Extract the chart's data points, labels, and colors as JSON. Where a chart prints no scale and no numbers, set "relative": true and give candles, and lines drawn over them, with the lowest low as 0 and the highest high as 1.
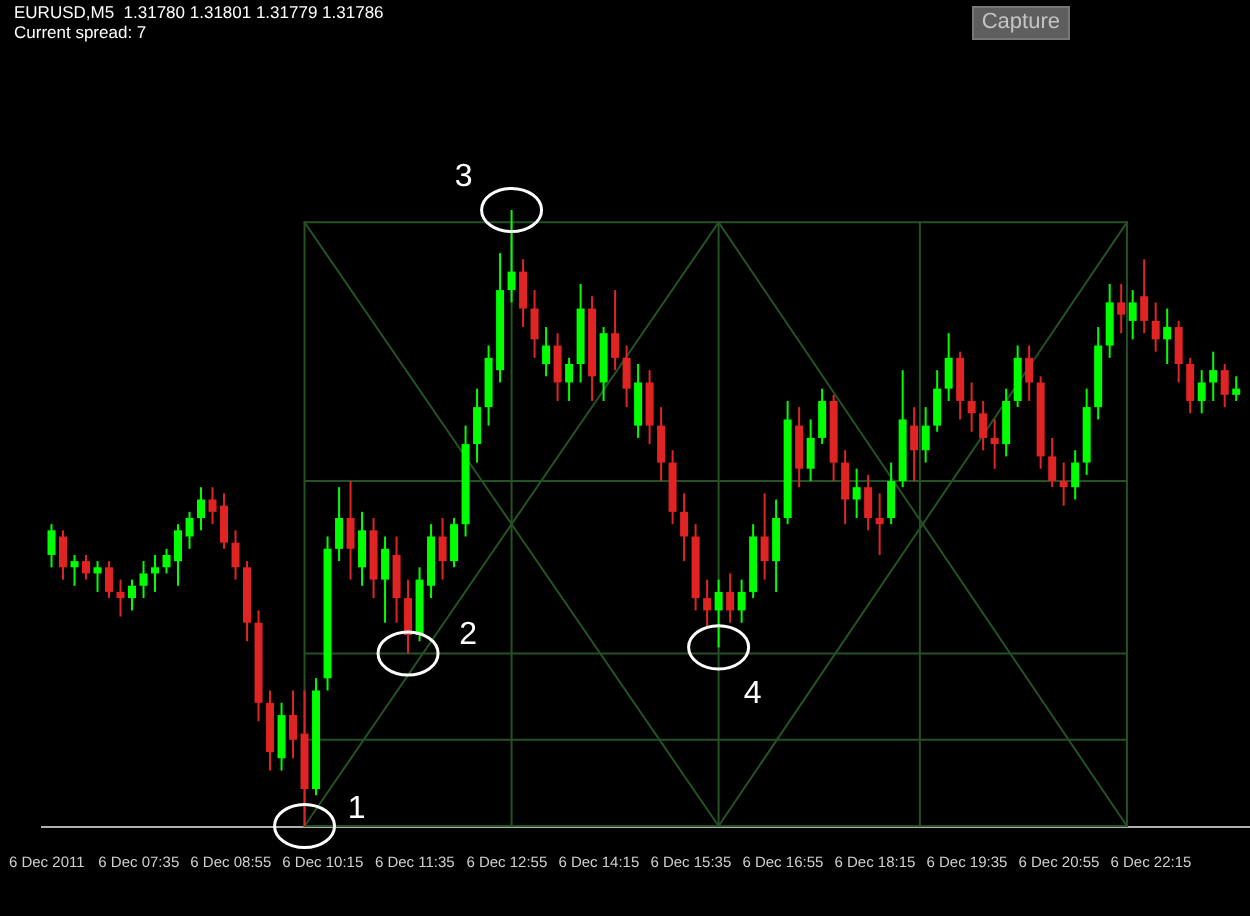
{
  "chart_data": {
    "type": "candlestick",
    "title": "EURUSD,M5  1.31780 1.31801 1.31779 1.31786",
    "subtitle": "Current spread: 7",
    "relative": true,
    "tick_labels": "x",
    "xlim": [
      "2011-12-06T06:10",
      "2011-12-06T23:42"
    ],
    "xticks": [
      {
        "value": "2011-12-06T06:15",
        "label": "6 Dec 2011"
      },
      {
        "value": "2011-12-06T07:35",
        "label": "6 Dec 07:35"
      },
      {
        "value": "2011-12-06T08:55",
        "label": "6 Dec 08:55"
      },
      {
        "value": "2011-12-06T10:15",
        "label": "6 Dec 10:15"
      },
      {
        "value": "2011-12-06T11:35",
        "label": "6 Dec 11:35"
      },
      {
        "value": "2011-12-06T12:55",
        "label": "6 Dec 12:55"
      },
      {
        "value": "2011-12-06T14:15",
        "label": "6 Dec 14:15"
      },
      {
        "value": "2011-12-06T15:35",
        "label": "6 Dec 15:35"
      },
      {
        "value": "2011-12-06T16:55",
        "label": "6 Dec 16:55"
      },
      {
        "value": "2011-12-06T18:15",
        "label": "6 Dec 18:15"
      },
      {
        "value": "2011-12-06T19:35",
        "label": "6 Dec 19:35"
      },
      {
        "value": "2011-12-06T20:55",
        "label": "6 Dec 20:55"
      },
      {
        "value": "2011-12-06T22:15",
        "label": "6 Dec 22:15"
      }
    ],
    "x": [
      "2011-12-06T06:20",
      "2011-12-06T06:30",
      "2011-12-06T06:40",
      "2011-12-06T06:50",
      "2011-12-06T07:00",
      "2011-12-06T07:10",
      "2011-12-06T07:20",
      "2011-12-06T07:30",
      "2011-12-06T07:40",
      "2011-12-06T07:50",
      "2011-12-06T08:00",
      "2011-12-06T08:10",
      "2011-12-06T08:20",
      "2011-12-06T08:30",
      "2011-12-06T08:40",
      "2011-12-06T08:50",
      "2011-12-06T09:00",
      "2011-12-06T09:10",
      "2011-12-06T09:20",
      "2011-12-06T09:30",
      "2011-12-06T09:40",
      "2011-12-06T09:50",
      "2011-12-06T10:00",
      "2011-12-06T10:10",
      "2011-12-06T10:20",
      "2011-12-06T10:30",
      "2011-12-06T10:40",
      "2011-12-06T10:50",
      "2011-12-06T11:00",
      "2011-12-06T11:10",
      "2011-12-06T11:20",
      "2011-12-06T11:30",
      "2011-12-06T11:40",
      "2011-12-06T11:50",
      "2011-12-06T12:00",
      "2011-12-06T12:10",
      "2011-12-06T12:20",
      "2011-12-06T12:30",
      "2011-12-06T12:40",
      "2011-12-06T12:50",
      "2011-12-06T13:00",
      "2011-12-06T13:10",
      "2011-12-06T13:20",
      "2011-12-06T13:30",
      "2011-12-06T13:40",
      "2011-12-06T13:50",
      "2011-12-06T14:00",
      "2011-12-06T14:10",
      "2011-12-06T14:20",
      "2011-12-06T14:30",
      "2011-12-06T14:40",
      "2011-12-06T14:50",
      "2011-12-06T15:00",
      "2011-12-06T15:10",
      "2011-12-06T15:20",
      "2011-12-06T15:30",
      "2011-12-06T15:40",
      "2011-12-06T15:50",
      "2011-12-06T16:00",
      "2011-12-06T16:10",
      "2011-12-06T16:20",
      "2011-12-06T16:30",
      "2011-12-06T16:40",
      "2011-12-06T16:50",
      "2011-12-06T17:00",
      "2011-12-06T17:10",
      "2011-12-06T17:20",
      "2011-12-06T17:30",
      "2011-12-06T17:40",
      "2011-12-06T17:50",
      "2011-12-06T18:00",
      "2011-12-06T18:10",
      "2011-12-06T18:20",
      "2011-12-06T18:30",
      "2011-12-06T18:40",
      "2011-12-06T18:50",
      "2011-12-06T19:00",
      "2011-12-06T19:10",
      "2011-12-06T19:20",
      "2011-12-06T19:30",
      "2011-12-06T19:40",
      "2011-12-06T19:50",
      "2011-12-06T20:00",
      "2011-12-06T20:10",
      "2011-12-06T20:20",
      "2011-12-06T20:30",
      "2011-12-06T20:40",
      "2011-12-06T20:50",
      "2011-12-06T21:00",
      "2011-12-06T21:10",
      "2011-12-06T21:20",
      "2011-12-06T21:30",
      "2011-12-06T21:40",
      "2011-12-06T21:50",
      "2011-12-06T22:00",
      "2011-12-06T22:10",
      "2011-12-06T22:20",
      "2011-12-06T22:30",
      "2011-12-06T22:40",
      "2011-12-06T22:50",
      "2011-12-06T23:00",
      "2011-12-06T23:10",
      "2011-12-06T23:20",
      "2011-12-06T23:30"
    ],
    "ohlc": [
      [
        0.44,
        0.49,
        0.42,
        0.48
      ],
      [
        0.47,
        0.48,
        0.4,
        0.42
      ],
      [
        0.42,
        0.44,
        0.39,
        0.43
      ],
      [
        0.43,
        0.44,
        0.4,
        0.41
      ],
      [
        0.41,
        0.43,
        0.38,
        0.42
      ],
      [
        0.42,
        0.43,
        0.37,
        0.38
      ],
      [
        0.38,
        0.4,
        0.34,
        0.37
      ],
      [
        0.37,
        0.4,
        0.35,
        0.39
      ],
      [
        0.39,
        0.43,
        0.37,
        0.41
      ],
      [
        0.41,
        0.44,
        0.38,
        0.42
      ],
      [
        0.42,
        0.45,
        0.41,
        0.44
      ],
      [
        0.43,
        0.49,
        0.39,
        0.48
      ],
      [
        0.47,
        0.51,
        0.45,
        0.5
      ],
      [
        0.5,
        0.55,
        0.48,
        0.53
      ],
      [
        0.53,
        0.55,
        0.49,
        0.51
      ],
      [
        0.52,
        0.54,
        0.45,
        0.46
      ],
      [
        0.46,
        0.48,
        0.4,
        0.42
      ],
      [
        0.42,
        0.43,
        0.3,
        0.33
      ],
      [
        0.33,
        0.35,
        0.17,
        0.2
      ],
      [
        0.2,
        0.22,
        0.09,
        0.12
      ],
      [
        0.11,
        0.2,
        0.09,
        0.18
      ],
      [
        0.18,
        0.22,
        0.11,
        0.14
      ],
      [
        0.15,
        0.22,
        0,
        0.06
      ],
      [
        0.06,
        0.24,
        0.05,
        0.22
      ],
      [
        0.24,
        0.47,
        0.22,
        0.45
      ],
      [
        0.45,
        0.55,
        0.43,
        0.5
      ],
      [
        0.5,
        0.56,
        0.4,
        0.45
      ],
      [
        0.42,
        0.51,
        0.39,
        0.48
      ],
      [
        0.48,
        0.5,
        0.37,
        0.4
      ],
      [
        0.4,
        0.47,
        0.33,
        0.45
      ],
      [
        0.44,
        0.47,
        0.33,
        0.37
      ],
      [
        0.37,
        0.4,
        0.28,
        0.31
      ],
      [
        0.31,
        0.42,
        0.3,
        0.4
      ],
      [
        0.39,
        0.49,
        0.37,
        0.47
      ],
      [
        0.47,
        0.5,
        0.4,
        0.43
      ],
      [
        0.43,
        0.5,
        0.42,
        0.49
      ],
      [
        0.49,
        0.65,
        0.47,
        0.62
      ],
      [
        0.62,
        0.71,
        0.59,
        0.68
      ],
      [
        0.68,
        0.78,
        0.65,
        0.76
      ],
      [
        0.74,
        0.93,
        0.72,
        0.87
      ],
      [
        0.87,
        1,
        0.85,
        0.9
      ],
      [
        0.9,
        0.92,
        0.81,
        0.84
      ],
      [
        0.84,
        0.87,
        0.76,
        0.79
      ],
      [
        0.75,
        0.81,
        0.73,
        0.78
      ],
      [
        0.78,
        0.8,
        0.69,
        0.72
      ],
      [
        0.72,
        0.76,
        0.69,
        0.75
      ],
      [
        0.75,
        0.88,
        0.72,
        0.84
      ],
      [
        0.84,
        0.86,
        0.69,
        0.73
      ],
      [
        0.72,
        0.81,
        0.69,
        0.8
      ],
      [
        0.8,
        0.87,
        0.74,
        0.76
      ],
      [
        0.76,
        0.78,
        0.68,
        0.71
      ],
      [
        0.65,
        0.75,
        0.63,
        0.72
      ],
      [
        0.72,
        0.74,
        0.62,
        0.65
      ],
      [
        0.65,
        0.68,
        0.56,
        0.59
      ],
      [
        0.59,
        0.61,
        0.49,
        0.51
      ],
      [
        0.51,
        0.54,
        0.43,
        0.47
      ],
      [
        0.47,
        0.49,
        0.35,
        0.37
      ],
      [
        0.37,
        0.4,
        0.32,
        0.35
      ],
      [
        0.35,
        0.4,
        0.29,
        0.38
      ],
      [
        0.38,
        0.41,
        0.33,
        0.35
      ],
      [
        0.35,
        0.4,
        0.33,
        0.38
      ],
      [
        0.38,
        0.49,
        0.37,
        0.47
      ],
      [
        0.47,
        0.54,
        0.4,
        0.43
      ],
      [
        0.43,
        0.53,
        0.38,
        0.5
      ],
      [
        0.5,
        0.69,
        0.49,
        0.66
      ],
      [
        0.65,
        0.68,
        0.55,
        0.58
      ],
      [
        0.58,
        0.66,
        0.56,
        0.63
      ],
      [
        0.63,
        0.71,
        0.62,
        0.69
      ],
      [
        0.69,
        0.7,
        0.56,
        0.59
      ],
      [
        0.59,
        0.61,
        0.49,
        0.53
      ],
      [
        0.53,
        0.58,
        0.5,
        0.55
      ],
      [
        0.55,
        0.57,
        0.48,
        0.5
      ],
      [
        0.5,
        0.54,
        0.44,
        0.49
      ],
      [
        0.5,
        0.59,
        0.49,
        0.56
      ],
      [
        0.56,
        0.74,
        0.55,
        0.66
      ],
      [
        0.65,
        0.68,
        0.56,
        0.61
      ],
      [
        0.61,
        0.68,
        0.59,
        0.65
      ],
      [
        0.65,
        0.74,
        0.64,
        0.71
      ],
      [
        0.71,
        0.8,
        0.69,
        0.76
      ],
      [
        0.76,
        0.77,
        0.66,
        0.69
      ],
      [
        0.69,
        0.72,
        0.64,
        0.67
      ],
      [
        0.67,
        0.69,
        0.61,
        0.63
      ],
      [
        0.63,
        0.66,
        0.58,
        0.62
      ],
      [
        0.62,
        0.71,
        0.6,
        0.69
      ],
      [
        0.69,
        0.78,
        0.68,
        0.76
      ],
      [
        0.76,
        0.78,
        0.69,
        0.72
      ],
      [
        0.72,
        0.73,
        0.58,
        0.6
      ],
      [
        0.6,
        0.63,
        0.55,
        0.56
      ],
      [
        0.56,
        0.59,
        0.52,
        0.55
      ],
      [
        0.55,
        0.61,
        0.53,
        0.59
      ],
      [
        0.59,
        0.71,
        0.57,
        0.68
      ],
      [
        0.68,
        0.81,
        0.66,
        0.78
      ],
      [
        0.78,
        0.88,
        0.76,
        0.85
      ],
      [
        0.85,
        0.88,
        0.8,
        0.83
      ],
      [
        0.82,
        0.87,
        0.79,
        0.85
      ],
      [
        0.86,
        0.92,
        0.8,
        0.82
      ],
      [
        0.82,
        0.85,
        0.77,
        0.79
      ],
      [
        0.79,
        0.84,
        0.75,
        0.81
      ],
      [
        0.81,
        0.82,
        0.72,
        0.75
      ],
      [
        0.75,
        0.76,
        0.67,
        0.69
      ],
      [
        0.69,
        0.74,
        0.67,
        0.72
      ],
      [
        0.72,
        0.77,
        0.69,
        0.74
      ],
      [
        0.74,
        0.75,
        0.68,
        0.7
      ],
      [
        0.7,
        0.73,
        0.69,
        0.71
      ]
    ],
    "colors": [
      "#00ff00",
      "#e02424",
      "#00ff00",
      "#e02424",
      "#00ff00",
      "#e02424",
      "#e02424",
      "#00ff00",
      "#00ff00",
      "#00ff00",
      "#00ff00",
      "#00ff00",
      "#00ff00",
      "#00ff00",
      "#e02424",
      "#e02424",
      "#e02424",
      "#e02424",
      "#e02424",
      "#e02424",
      "#00ff00",
      "#e02424",
      "#e02424",
      "#00ff00",
      "#00ff00",
      "#00ff00",
      "#e02424",
      "#00ff00",
      "#e02424",
      "#00ff00",
      "#e02424",
      "#e02424",
      "#00ff00",
      "#00ff00",
      "#e02424",
      "#00ff00",
      "#00ff00",
      "#00ff00",
      "#00ff00",
      "#00ff00",
      "#00ff00",
      "#e02424",
      "#e02424",
      "#00ff00",
      "#e02424",
      "#00ff00",
      "#00ff00",
      "#e02424",
      "#00ff00",
      "#e02424",
      "#e02424",
      "#00ff00",
      "#e02424",
      "#e02424",
      "#e02424",
      "#e02424",
      "#e02424",
      "#e02424",
      "#00ff00",
      "#e02424",
      "#00ff00",
      "#00ff00",
      "#e02424",
      "#00ff00",
      "#00ff00",
      "#e02424",
      "#00ff00",
      "#00ff00",
      "#e02424",
      "#e02424",
      "#00ff00",
      "#e02424",
      "#e02424",
      "#00ff00",
      "#00ff00",
      "#e02424",
      "#00ff00",
      "#00ff00",
      "#00ff00",
      "#e02424",
      "#e02424",
      "#e02424",
      "#e02424",
      "#00ff00",
      "#00ff00",
      "#e02424",
      "#e02424",
      "#e02424",
      "#e02424",
      "#00ff00",
      "#00ff00",
      "#00ff00",
      "#00ff00",
      "#e02424",
      "#00ff00",
      "#e02424",
      "#e02424",
      "#00ff00",
      "#e02424",
      "#e02424",
      "#00ff00",
      "#00ff00",
      "#e02424",
      "#00ff00"
    ],
    "series": [
      {
        "type": "line",
        "x": [
          "2011-12-06T10:00",
          "2011-12-06T21:55"
        ],
        "values": [
          0.98,
          0.98
        ],
        "color": "#245224"
      },
      {
        "type": "line",
        "x": [
          "2011-12-06T10:00",
          "2011-12-06T21:55"
        ],
        "values": [
          0.56,
          0.56
        ],
        "color": "#245224"
      },
      {
        "type": "line",
        "x": [
          "2011-12-06T10:00",
          "2011-12-06T21:55"
        ],
        "values": [
          0.28,
          0.28
        ],
        "color": "#245224"
      },
      {
        "type": "line",
        "x": [
          "2011-12-06T10:00",
          "2011-12-06T21:55"
        ],
        "values": [
          0.14,
          0.14
        ],
        "color": "#245224"
      },
      {
        "type": "line",
        "x": [
          "2011-12-06T10:00",
          "2011-12-06T21:55"
        ],
        "values": [
          0,
          0
        ],
        "color": "#245224"
      },
      {
        "type": "line",
        "x": [
          "2011-12-06T10:00",
          "2011-12-06T10:00"
        ],
        "values": [
          0,
          0.98
        ],
        "color": "#245224"
      },
      {
        "type": "line",
        "x": [
          "2011-12-06T13:00",
          "2011-12-06T13:00"
        ],
        "values": [
          0,
          0.98
        ],
        "color": "#245224"
      },
      {
        "type": "line",
        "x": [
          "2011-12-06T16:00",
          "2011-12-06T16:00"
        ],
        "values": [
          0,
          0.98
        ],
        "color": "#245224"
      },
      {
        "type": "line",
        "x": [
          "2011-12-06T18:55",
          "2011-12-06T18:55"
        ],
        "values": [
          0,
          0.98
        ],
        "color": "#245224"
      },
      {
        "type": "line",
        "x": [
          "2011-12-06T21:55",
          "2011-12-06T21:55"
        ],
        "values": [
          0,
          0.98
        ],
        "color": "#245224"
      },
      {
        "type": "line",
        "x": [
          "2011-12-06T10:00",
          "2011-12-06T16:00"
        ],
        "values": [
          0,
          0.98
        ],
        "color": "#245224"
      },
      {
        "type": "line",
        "x": [
          "2011-12-06T10:00",
          "2011-12-06T16:00"
        ],
        "values": [
          0.98,
          0
        ],
        "color": "#245224"
      },
      {
        "type": "line",
        "x": [
          "2011-12-06T16:00",
          "2011-12-06T21:55"
        ],
        "values": [
          0.98,
          0
        ],
        "color": "#245224"
      },
      {
        "type": "line",
        "x": [
          "2011-12-06T16:00",
          "2011-12-06T21:55"
        ],
        "values": [
          0,
          0.98
        ],
        "color": "#245224"
      }
    ],
    "annotations": [
      "Capture",
      {
        "text": "1",
        "x": "2011-12-06T10:00",
        "y": 0
      },
      {
        "text": "2",
        "x": "2011-12-06T11:30",
        "y": 0.28
      },
      {
        "text": "3",
        "x": "2011-12-06T13:00",
        "y": 1
      },
      {
        "text": "4",
        "x": "2011-12-06T16:00",
        "y": 0.29
      }
    ]
  }
}
